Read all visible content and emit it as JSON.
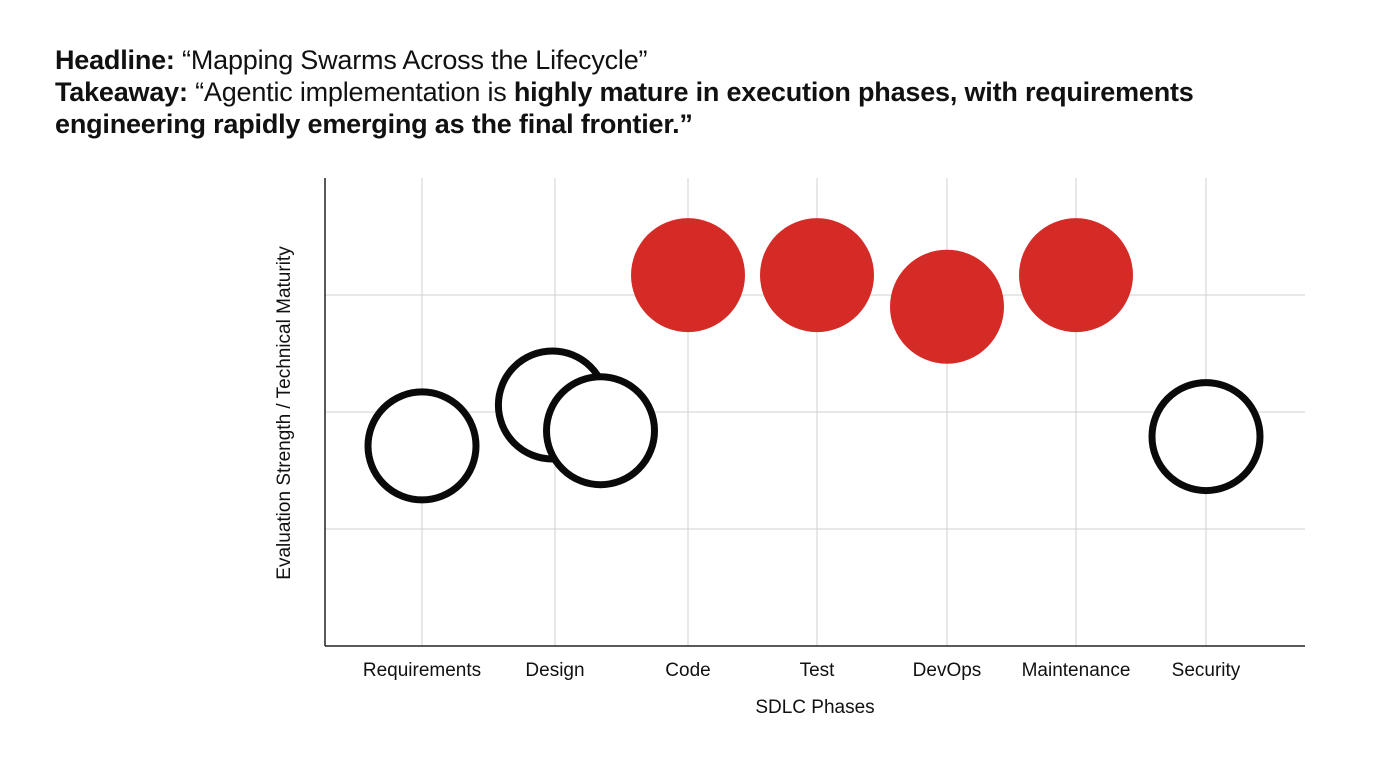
{
  "headline": {
    "label": "Headline:",
    "text": "“Mapping Swarms Across the Lifecycle”"
  },
  "takeaway": {
    "label": "Takeaway:",
    "text_regular": "“Agentic implementation is ",
    "text_bold_1": "highly mature in execution phases, with requirements",
    "text_bold_2": "engineering rapidly emerging as the final frontier.”"
  },
  "colors": {
    "mature_fill": "#d52b27",
    "emerging_stroke": "#0a0a0a",
    "grid": "#d0d0d0",
    "axis": "#222222"
  },
  "chart_data": {
    "type": "scatter",
    "title": "",
    "xlabel": "SDLC Phases",
    "ylabel": "Evaluation Strength / Technical Maturity",
    "categories": [
      "Requirements",
      "Design",
      "Code",
      "Test",
      "DevOps",
      "Maintenance",
      "Security"
    ],
    "ylim": [
      0,
      4
    ],
    "grid": true,
    "legend": "none",
    "series": [
      {
        "style": "hollow",
        "points": [
          {
            "category": "Requirements",
            "offset": 0,
            "y": 1.71
          },
          {
            "category": "Design",
            "offset": -0.02,
            "y": 2.06
          },
          {
            "category": "Design",
            "offset": 0.35,
            "y": 1.84
          },
          {
            "category": "Security",
            "offset": 0,
            "y": 1.79
          }
        ]
      },
      {
        "style": "filled",
        "points": [
          {
            "category": "Code",
            "offset": 0,
            "y": 3.17
          },
          {
            "category": "Test",
            "offset": 0,
            "y": 3.17
          },
          {
            "category": "DevOps",
            "offset": 0,
            "y": 2.9
          },
          {
            "category": "Maintenance",
            "offset": 0,
            "y": 3.17
          }
        ]
      }
    ]
  }
}
